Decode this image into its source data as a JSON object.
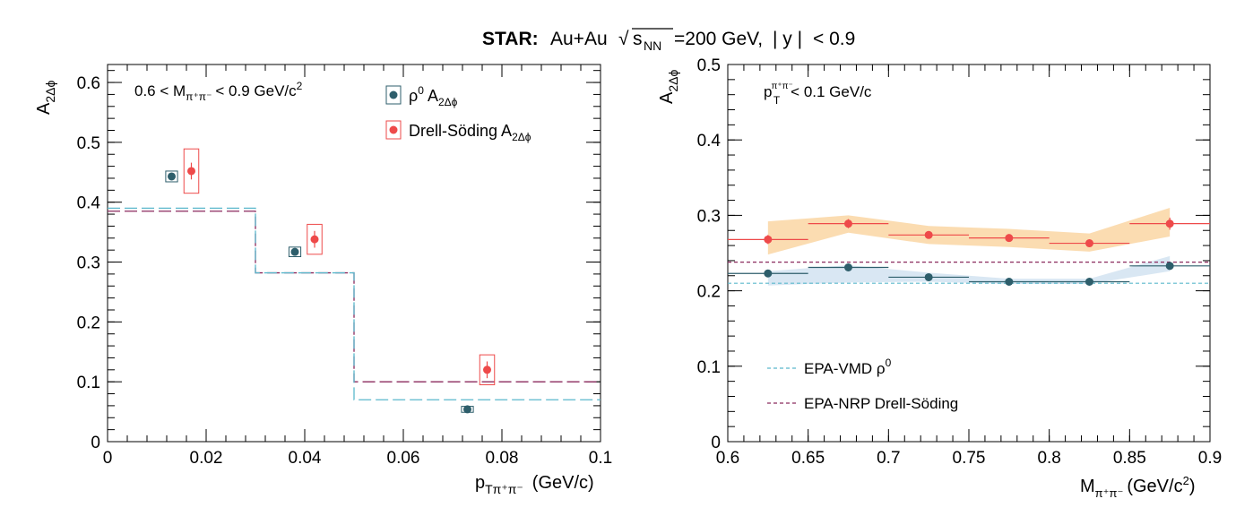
{
  "figure": {
    "title_bold": "STAR:",
    "title_rest": "Au+Au",
    "title_energy": "=200 GeV,",
    "title_rapidity": "< 0.9"
  },
  "colors": {
    "rho": "#2e5e6b",
    "ds": "#ee4a4a",
    "vmd": "#5bb8cc",
    "nrp": "#8b2a5e",
    "band_ds": "#fbd8a9",
    "band_rho": "#d5e4f2"
  },
  "left_panel": {
    "ylabel": "A",
    "ylabel_sub": "2Δϕ",
    "xlabel": "p",
    "xlabel_sub": "Tπ⁺π⁻",
    "xlabel_units": "(GeV/c)",
    "cut_label_pre": "0.6 < M",
    "cut_label_sub": "π⁺π⁻",
    "cut_label_post": "< 0.9 GeV/c",
    "cut_label_sup": "2",
    "legend": [
      {
        "symbol": "ρ",
        "sup": "0",
        "text": "A",
        "sub": "2Δϕ"
      },
      {
        "text": "Drell-Söding A",
        "sub": "2Δϕ"
      }
    ],
    "xticks": [
      "0",
      "0.02",
      "0.04",
      "0.06",
      "0.08",
      "0.1"
    ],
    "yticks": [
      "0",
      "0.1",
      "0.2",
      "0.3",
      "0.4",
      "0.5",
      "0.6"
    ]
  },
  "right_panel": {
    "ylabel": "A",
    "ylabel_sub": "2Δϕ",
    "xlabel": "M",
    "xlabel_sub": "π⁺π⁻",
    "xlabel_units": "(GeV/c",
    "xlabel_units_sup": "2",
    "cut_label_pre": "p",
    "cut_label_sup": "π⁺π⁻",
    "cut_label_sub": "T",
    "cut_label_post": "< 0.1 GeV/c",
    "legend": [
      {
        "text": "EPA-VMD ρ",
        "sup": "0"
      },
      {
        "text": "EPA-NRP Drell-Söding"
      }
    ],
    "xticks": [
      "0.6",
      "0.65",
      "0.7",
      "0.75",
      "0.8",
      "0.85",
      "0.9"
    ],
    "yticks": [
      "0",
      "0.1",
      "0.2",
      "0.3",
      "0.4",
      "0.5"
    ]
  },
  "chart_data": [
    {
      "type": "scatter",
      "xlim": [
        0,
        0.1
      ],
      "ylim": [
        0,
        0.63
      ],
      "series": [
        {
          "name": "ρ⁰ A2Δϕ",
          "x": [
            0.013,
            0.038,
            0.073
          ],
          "y": [
            0.443,
            0.317,
            0.054
          ],
          "yerr": [
            0.005,
            0.004,
            0.002
          ],
          "syst_x": [
            0.0012,
            0.0012,
            0.0012
          ],
          "syst_y": [
            0.009,
            0.008,
            0.005
          ]
        },
        {
          "name": "Drell-Söding A2Δϕ",
          "x": [
            0.017,
            0.042,
            0.077
          ],
          "y": [
            0.452,
            0.338,
            0.12
          ],
          "yerr": [
            0.014,
            0.014,
            0.014
          ],
          "syst_x": [
            0.0015,
            0.0015,
            0.0015
          ],
          "syst_y": [
            0.037,
            0.025,
            0.025
          ]
        }
      ],
      "steps": [
        {
          "edges": [
            0,
            0.03,
            0.05,
            0.1
          ],
          "values": [
            0.385,
            0.282,
            0.1
          ]
        },
        {
          "edges": [
            0,
            0.03,
            0.05,
            0.1
          ],
          "values": [
            0.39,
            0.282,
            0.07
          ]
        }
      ]
    },
    {
      "type": "scatter",
      "xlim": [
        0.6,
        0.9
      ],
      "ylim": [
        0,
        0.5
      ],
      "series": [
        {
          "name": "Drell-Söding",
          "x": [
            0.625,
            0.675,
            0.725,
            0.775,
            0.825,
            0.875
          ],
          "y": [
            0.268,
            0.289,
            0.274,
            0.27,
            0.263,
            0.289
          ],
          "yerr": [
            0.006,
            0.006,
            0.005,
            0.005,
            0.005,
            0.008
          ],
          "band_lo": [
            0.248,
            0.277,
            0.262,
            0.258,
            0.252,
            0.272
          ],
          "band_hi": [
            0.292,
            0.3,
            0.286,
            0.282,
            0.276,
            0.31
          ]
        },
        {
          "name": "ρ⁰",
          "x": [
            0.625,
            0.675,
            0.725,
            0.775,
            0.825,
            0.875
          ],
          "y": [
            0.223,
            0.231,
            0.218,
            0.212,
            0.212,
            0.233
          ],
          "yerr": [
            0.005,
            0.004,
            0.004,
            0.004,
            0.004,
            0.005
          ],
          "band_lo": [
            0.207,
            0.211,
            0.212,
            0.209,
            0.209,
            0.226
          ],
          "band_hi": [
            0.226,
            0.234,
            0.224,
            0.216,
            0.216,
            0.246
          ]
        }
      ],
      "lines": [
        {
          "name": "EPA-VMD ρ⁰",
          "y": 0.21
        },
        {
          "name": "EPA-NRP Drell-Söding",
          "y": 0.238
        }
      ]
    }
  ]
}
